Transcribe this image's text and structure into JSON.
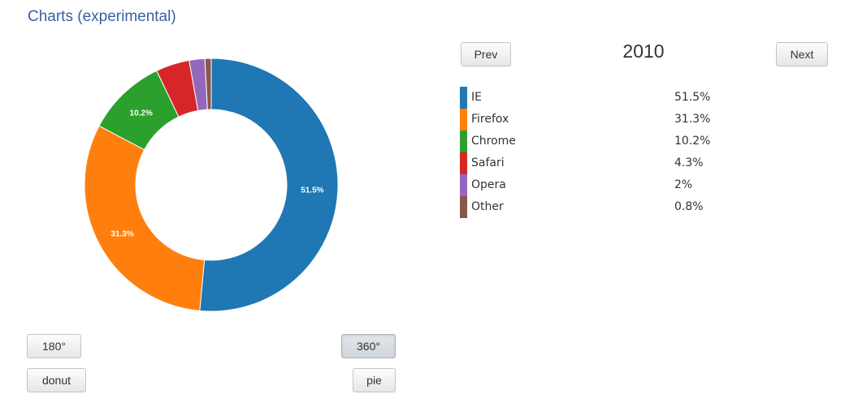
{
  "title": "Charts (experimental)",
  "navigation": {
    "prev_label": "Prev",
    "next_label": "Next",
    "year": "2010"
  },
  "controls": {
    "half_label": "180°",
    "full_label": "360°",
    "donut_label": "donut",
    "pie_label": "pie",
    "active_angle": "360°"
  },
  "legend": [
    {
      "label": "IE",
      "value": "51.5%"
    },
    {
      "label": "Firefox",
      "value": "31.3%"
    },
    {
      "label": "Chrome",
      "value": "10.2%"
    },
    {
      "label": "Safari",
      "value": "4.3%"
    },
    {
      "label": "Opera",
      "value": "2%"
    },
    {
      "label": "Other",
      "value": "0.8%"
    }
  ],
  "chart_data": {
    "type": "pie",
    "variant": "donut",
    "categories": [
      "IE",
      "Firefox",
      "Chrome",
      "Safari",
      "Opera",
      "Other"
    ],
    "values": [
      51.5,
      31.3,
      10.2,
      4.3,
      2,
      0.8
    ],
    "data_labels": [
      "51.5%",
      "31.3%",
      "10.2%",
      "",
      "",
      ""
    ],
    "colors": [
      "#1f77b4",
      "#ff7f0e",
      "#2ca02c",
      "#d62728",
      "#9467bd",
      "#8c564b"
    ]
  }
}
